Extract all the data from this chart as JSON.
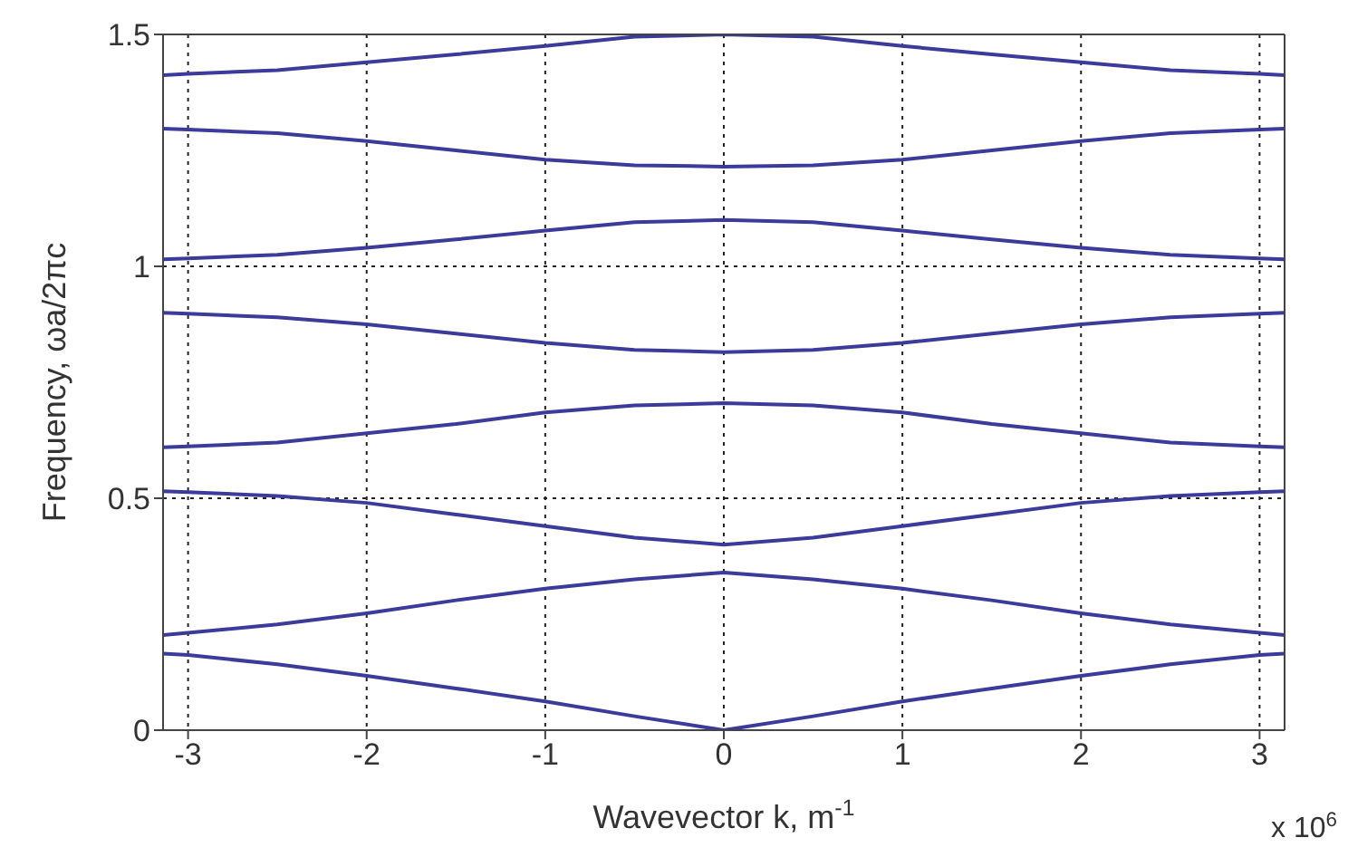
{
  "chart_data": {
    "type": "line",
    "xlabel": "Wavevector k, m$^{-1}$",
    "ylabel": "Frequency, ωa/2πc",
    "annotations": [
      "x 10$^{6}$"
    ],
    "x": [
      -3.14,
      -3,
      -2.5,
      -2,
      -1.5,
      -1,
      -0.5,
      0,
      0.5,
      1,
      1.5,
      2,
      2.5,
      3,
      3.14
    ],
    "series": [
      {
        "color": "#3b3b9c",
        "values": [
          0.165,
          0.162,
          0.142,
          0.117,
          0.09,
          0.062,
          0.03,
          0,
          0.03,
          0.062,
          0.09,
          0.117,
          0.142,
          0.162,
          0.165
        ]
      },
      {
        "color": "#3b3b9c",
        "values": [
          0.205,
          0.21,
          0.228,
          0.252,
          0.28,
          0.305,
          0.325,
          0.34,
          0.325,
          0.305,
          0.28,
          0.252,
          0.228,
          0.21,
          0.205
        ]
      },
      {
        "color": "#3b3b9c",
        "values": [
          0.515,
          0.513,
          0.505,
          0.49,
          0.465,
          0.44,
          0.415,
          0.4,
          0.415,
          0.44,
          0.465,
          0.49,
          0.505,
          0.513,
          0.515
        ]
      },
      {
        "color": "#3b3b9c",
        "values": [
          0.61,
          0.612,
          0.62,
          0.64,
          0.66,
          0.685,
          0.7,
          0.705,
          0.7,
          0.685,
          0.66,
          0.64,
          0.62,
          0.612,
          0.61
        ]
      },
      {
        "color": "#3b3b9c",
        "values": [
          0.9,
          0.898,
          0.89,
          0.875,
          0.855,
          0.835,
          0.82,
          0.815,
          0.82,
          0.835,
          0.855,
          0.875,
          0.89,
          0.898,
          0.9
        ]
      },
      {
        "color": "#3b3b9c",
        "values": [
          1.015,
          1.017,
          1.025,
          1.04,
          1.058,
          1.077,
          1.095,
          1.1,
          1.095,
          1.077,
          1.058,
          1.04,
          1.025,
          1.017,
          1.015
        ]
      },
      {
        "color": "#3b3b9c",
        "values": [
          1.297,
          1.295,
          1.287,
          1.27,
          1.25,
          1.23,
          1.218,
          1.215,
          1.218,
          1.23,
          1.25,
          1.27,
          1.287,
          1.295,
          1.297
        ]
      },
      {
        "color": "#3b3b9c",
        "values": [
          1.412,
          1.415,
          1.423,
          1.44,
          1.457,
          1.475,
          1.495,
          1.5,
          1.495,
          1.475,
          1.457,
          1.44,
          1.423,
          1.415,
          1.412
        ]
      }
    ],
    "xlim": [
      -3.14,
      3.14
    ],
    "xticks": [
      -3,
      -2,
      -1,
      0,
      1,
      2,
      3
    ],
    "ylim": [
      0,
      1.5
    ],
    "yticks": [
      0,
      0.5,
      1,
      1.5
    ],
    "grid": true,
    "marker": "none",
    "line_style": "solid"
  }
}
